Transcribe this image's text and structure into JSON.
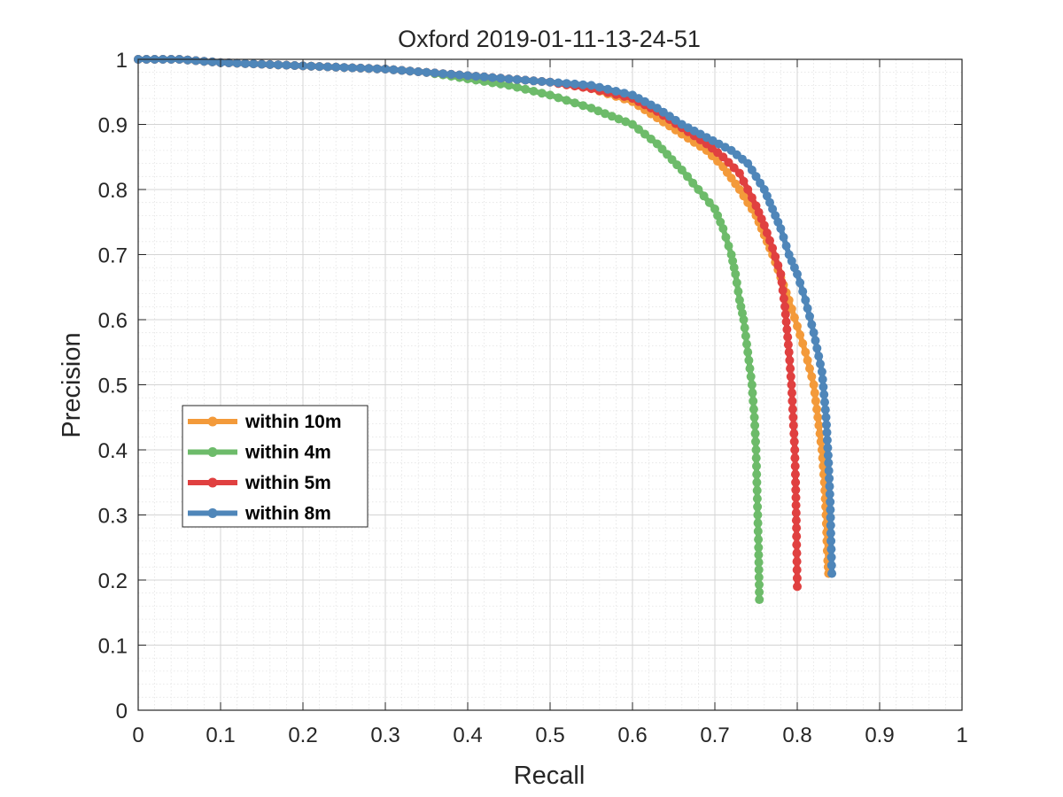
{
  "chart_data": {
    "type": "line",
    "title": "Oxford 2019-01-11-13-24-51",
    "xlabel": "Recall",
    "ylabel": "Precision",
    "xlim": [
      0,
      1
    ],
    "ylim": [
      0,
      1
    ],
    "xticks": [
      "0",
      "0.1",
      "0.2",
      "0.3",
      "0.4",
      "0.5",
      "0.6",
      "0.7",
      "0.8",
      "0.9",
      "1"
    ],
    "yticks": [
      "0",
      "0.1",
      "0.2",
      "0.3",
      "0.4",
      "0.5",
      "0.6",
      "0.7",
      "0.8",
      "0.9",
      "1"
    ],
    "grid": true,
    "minor_grid": true,
    "legend_position": "left-middle",
    "series": [
      {
        "name": "within 10m",
        "color": "#f39a3a",
        "x": [
          0.0,
          0.05,
          0.1,
          0.2,
          0.3,
          0.4,
          0.45,
          0.5,
          0.55,
          0.6,
          0.63,
          0.66,
          0.69,
          0.71,
          0.73,
          0.75,
          0.76,
          0.77,
          0.78,
          0.79,
          0.8,
          0.81,
          0.82,
          0.825,
          0.83,
          0.833,
          0.835,
          0.836,
          0.837,
          0.838
        ],
        "y": [
          1.0,
          1.0,
          0.995,
          0.99,
          0.985,
          0.975,
          0.97,
          0.965,
          0.955,
          0.935,
          0.91,
          0.885,
          0.86,
          0.835,
          0.8,
          0.76,
          0.73,
          0.7,
          0.665,
          0.63,
          0.59,
          0.55,
          0.5,
          0.45,
          0.4,
          0.35,
          0.3,
          0.26,
          0.23,
          0.21
        ]
      },
      {
        "name": "within 4m",
        "color": "#6dbb6a",
        "x": [
          0.0,
          0.05,
          0.1,
          0.2,
          0.3,
          0.35,
          0.4,
          0.45,
          0.5,
          0.55,
          0.6,
          0.63,
          0.66,
          0.68,
          0.7,
          0.71,
          0.72,
          0.725,
          0.73,
          0.735,
          0.74,
          0.745,
          0.748,
          0.75,
          0.751,
          0.752,
          0.753,
          0.754
        ],
        "y": [
          1.0,
          1.0,
          0.995,
          0.99,
          0.985,
          0.98,
          0.97,
          0.96,
          0.945,
          0.925,
          0.9,
          0.87,
          0.83,
          0.8,
          0.77,
          0.74,
          0.7,
          0.67,
          0.63,
          0.6,
          0.55,
          0.5,
          0.45,
          0.4,
          0.35,
          0.3,
          0.25,
          0.17
        ]
      },
      {
        "name": "within 5m",
        "color": "#e04040",
        "x": [
          0.0,
          0.05,
          0.1,
          0.2,
          0.3,
          0.4,
          0.45,
          0.5,
          0.55,
          0.6,
          0.63,
          0.66,
          0.69,
          0.71,
          0.73,
          0.74,
          0.75,
          0.76,
          0.77,
          0.78,
          0.785,
          0.79,
          0.793,
          0.795,
          0.797,
          0.798,
          0.799,
          0.8
        ],
        "y": [
          1.0,
          1.0,
          0.995,
          0.99,
          0.985,
          0.975,
          0.97,
          0.965,
          0.955,
          0.94,
          0.92,
          0.895,
          0.87,
          0.85,
          0.825,
          0.8,
          0.775,
          0.745,
          0.71,
          0.67,
          0.62,
          0.55,
          0.5,
          0.45,
          0.4,
          0.35,
          0.28,
          0.19
        ]
      },
      {
        "name": "within 8m",
        "color": "#4f86b9",
        "x": [
          0.0,
          0.05,
          0.1,
          0.2,
          0.3,
          0.4,
          0.45,
          0.5,
          0.55,
          0.6,
          0.63,
          0.66,
          0.69,
          0.72,
          0.74,
          0.75,
          0.76,
          0.77,
          0.78,
          0.79,
          0.8,
          0.81,
          0.82,
          0.83,
          0.835,
          0.838,
          0.84,
          0.841,
          0.842
        ],
        "y": [
          1.0,
          1.0,
          0.995,
          0.99,
          0.985,
          0.975,
          0.97,
          0.965,
          0.96,
          0.945,
          0.925,
          0.9,
          0.88,
          0.86,
          0.84,
          0.82,
          0.8,
          0.77,
          0.74,
          0.7,
          0.67,
          0.63,
          0.58,
          0.52,
          0.45,
          0.38,
          0.32,
          0.26,
          0.21
        ]
      }
    ]
  }
}
